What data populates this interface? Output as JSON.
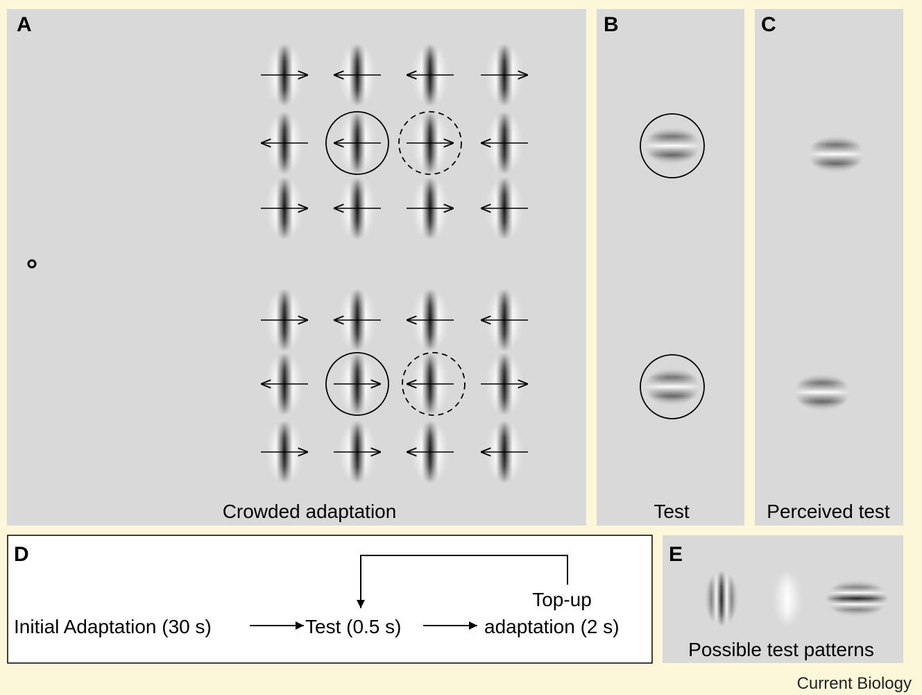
{
  "panels": {
    "A": {
      "label": "A",
      "caption": "Crowded adaptation"
    },
    "B": {
      "label": "B",
      "caption": "Test"
    },
    "C": {
      "label": "C",
      "caption": "Perceived test"
    },
    "D": {
      "label": "D",
      "steps": [
        "Initial Adaptation (30 s)",
        "Test (0.5 s)",
        "Top-up",
        "adaptation (2 s)"
      ]
    },
    "E": {
      "label": "E",
      "caption": "Possible test patterns"
    }
  },
  "credit": "Current Biology"
}
